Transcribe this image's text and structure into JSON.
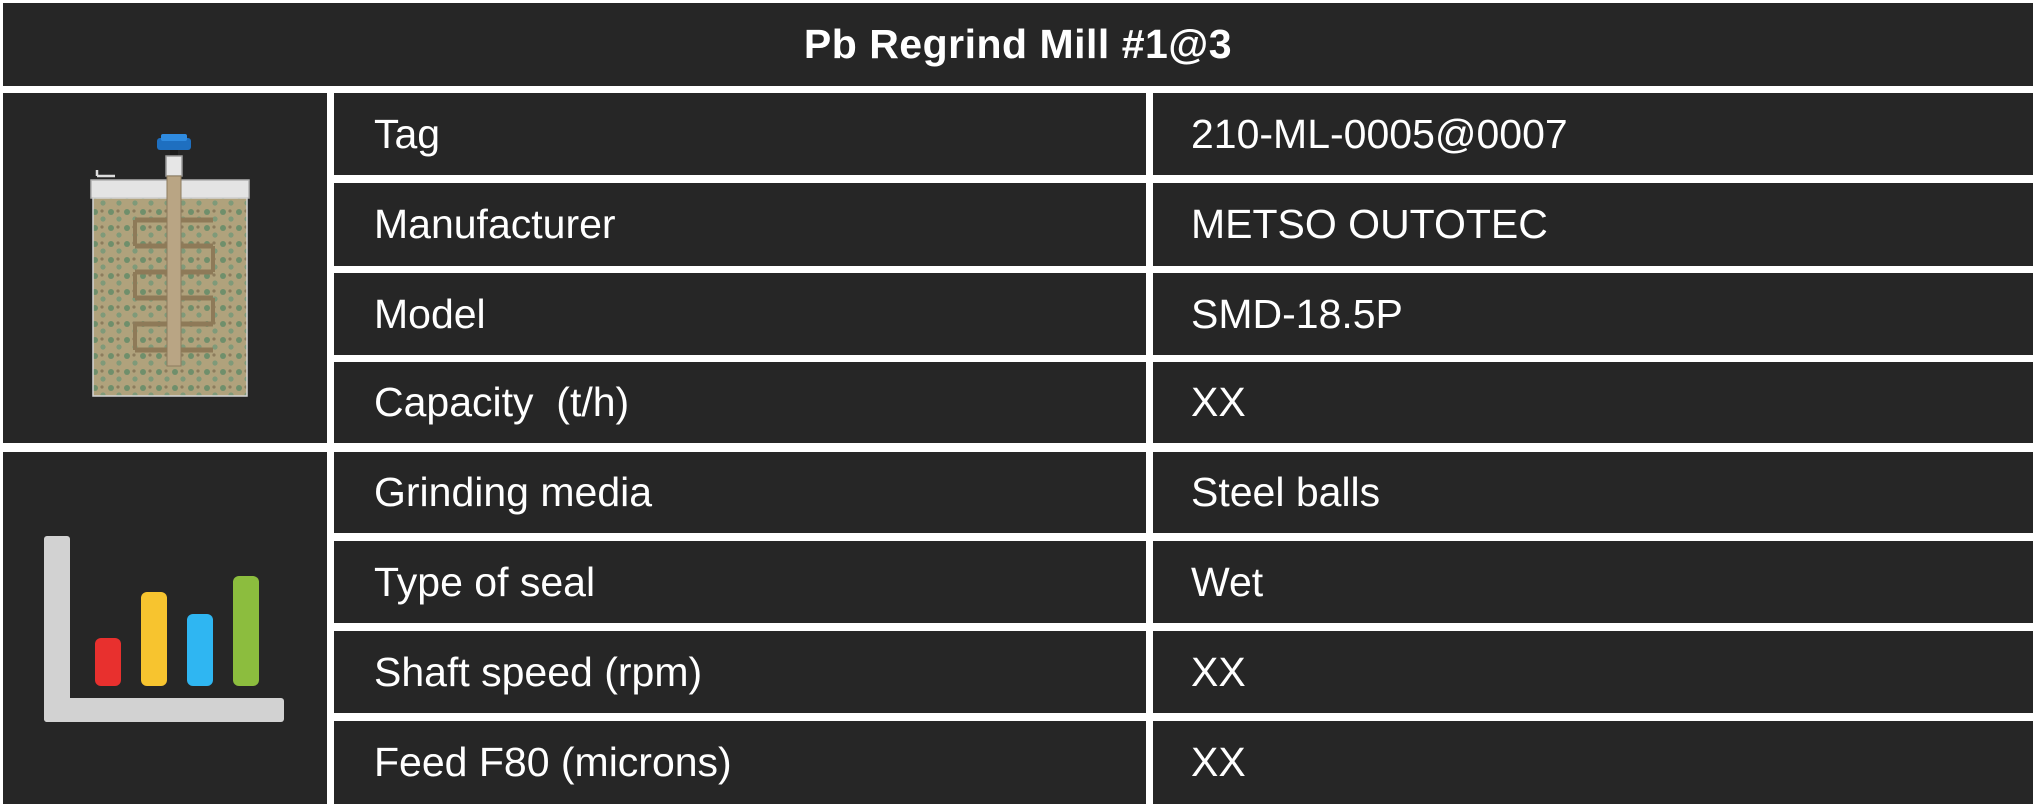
{
  "title": "Pb Regrind Mill #1@3",
  "icons": {
    "equipment": "mill-tank-icon",
    "specs": "bar-chart-icon",
    "bar_colors": [
      "#e8302e",
      "#f7c42f",
      "#2fb6f2",
      "#8cbd3e"
    ]
  },
  "rows": [
    {
      "label": "Tag",
      "value": "210-ML-0005@0007"
    },
    {
      "label": "Manufacturer",
      "value": "METSO OUTOTEC"
    },
    {
      "label": "Model",
      "value": "SMD-18.5P"
    },
    {
      "label": "Capacity  (t/h)",
      "value": "XX"
    },
    {
      "label": "Grinding media",
      "value": "Steel balls"
    },
    {
      "label": "Type of seal",
      "value": "Wet"
    },
    {
      "label": "Shaft speed (rpm)",
      "value": "XX"
    },
    {
      "label": "Feed F80 (microns)",
      "value": "XX"
    }
  ]
}
